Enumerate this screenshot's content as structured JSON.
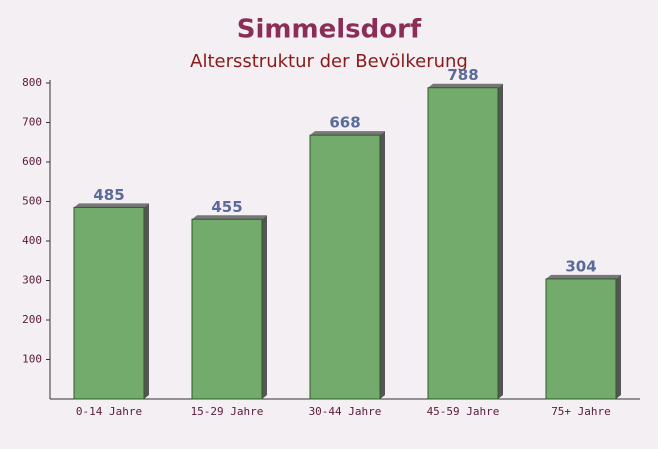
{
  "chart_data": {
    "type": "bar",
    "title": "Simmelsdorf",
    "subtitle": "Altersstruktur der Bevölkerung",
    "categories": [
      "0-14 Jahre",
      "15-29 Jahre",
      "30-44 Jahre",
      "45-59 Jahre",
      "75+ Jahre"
    ],
    "values": [
      485,
      455,
      668,
      788,
      304
    ],
    "color": "#6aa764",
    "ylim": [
      0,
      800
    ],
    "yticks": [
      100,
      200,
      300,
      400,
      500,
      600,
      700,
      800
    ],
    "grid": false
  }
}
